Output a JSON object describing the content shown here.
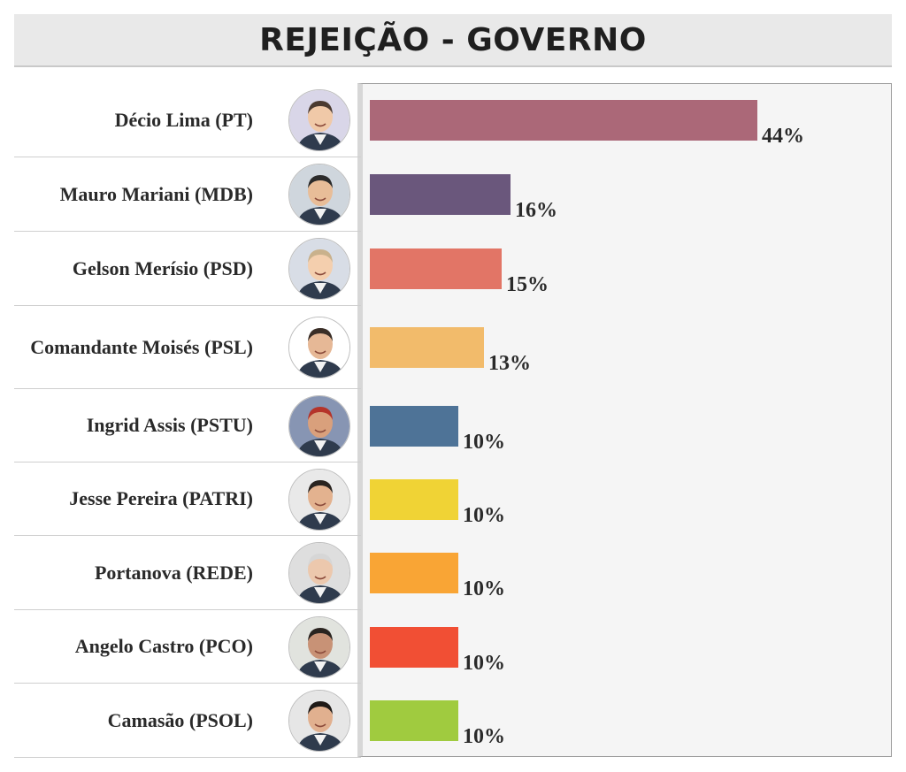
{
  "chart_data": {
    "type": "bar",
    "orientation": "horizontal",
    "title": "REJEIÇÃO - GOVERNO",
    "categories": [
      "Décio Lima (PT)",
      "Mauro Mariani (MDB)",
      "Gelson Merísio (PSD)",
      "Comandante Moisés (PSL)",
      "Ingrid Assis (PSTU)",
      "Jesse Pereira (PATRI)",
      "Portanova (REDE)",
      "Angelo Castro (PCO)",
      "Camasão (PSOL)"
    ],
    "values": [
      44,
      16,
      15,
      13,
      10,
      10,
      10,
      10,
      10
    ],
    "value_labels": [
      "44%",
      "16%",
      "15%",
      "13%",
      "10%",
      "10%",
      "10%",
      "10%",
      "10%"
    ],
    "unit": "%",
    "xlim": [
      0,
      44
    ],
    "colors": [
      "#ab6878",
      "#6a577c",
      "#e27566",
      "#f2bb6b",
      "#4e7397",
      "#f0d335",
      "#f9a535",
      "#f14f34",
      "#a0cb3f"
    ],
    "grid": false,
    "legend": "none"
  }
}
